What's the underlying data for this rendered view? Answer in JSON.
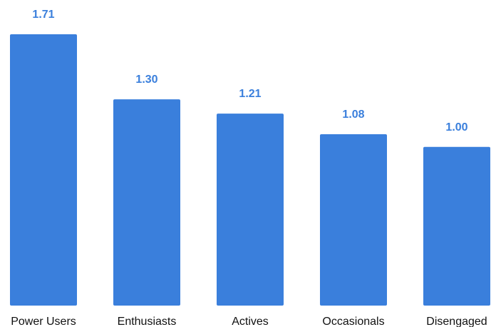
{
  "chart_data": {
    "type": "bar",
    "categories": [
      "Power Users",
      "Enthusiasts",
      "Actives",
      "Occasionals",
      "Disengaged"
    ],
    "values": [
      1.71,
      1.3,
      1.21,
      1.08,
      1.0
    ],
    "value_labels": [
      "1.71",
      "1.30",
      "1.21",
      "1.08",
      "1.00"
    ],
    "title": "",
    "xlabel": "",
    "ylabel": "",
    "ylim": [
      0,
      1.71
    ],
    "grid": false,
    "legend": "none"
  },
  "colors": {
    "bar": "#3a7fdc",
    "value_label": "#3a7fdc",
    "category_label": "#111111",
    "background": "#ffffff"
  }
}
